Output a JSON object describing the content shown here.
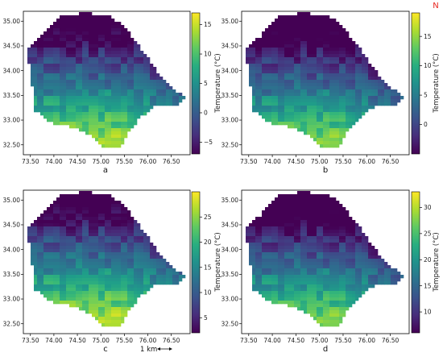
{
  "figure": {
    "north_label": "N",
    "scalebar_label": "1 km",
    "x_ticks": [
      "73.50",
      "74.00",
      "74.50",
      "75.00",
      "75.50",
      "76.00",
      "76.50"
    ],
    "y_ticks": [
      "35.00",
      "34.50",
      "34.00",
      "33.50",
      "33.00",
      "32.50"
    ],
    "colorbar_label": "Temperature (°C)",
    "colormap": "viridis"
  },
  "panels": [
    {
      "id": "a",
      "label": "a",
      "range": [
        -7,
        17
      ],
      "ticks": [
        -5,
        0,
        5,
        10,
        15
      ],
      "warm_offset": 0.0
    },
    {
      "id": "b",
      "label": "b",
      "range": [
        -5,
        19
      ],
      "ticks": [
        0,
        5,
        10,
        15
      ],
      "warm_offset": -0.05
    },
    {
      "id": "c",
      "label": "c",
      "range": [
        2,
        30
      ],
      "ticks": [
        5,
        10,
        15,
        20,
        25
      ],
      "warm_offset": 0.02
    },
    {
      "id": "d",
      "label": "d",
      "range": [
        6,
        33
      ],
      "ticks": [
        10,
        15,
        20,
        25,
        30
      ],
      "warm_offset": -0.06
    }
  ]
}
